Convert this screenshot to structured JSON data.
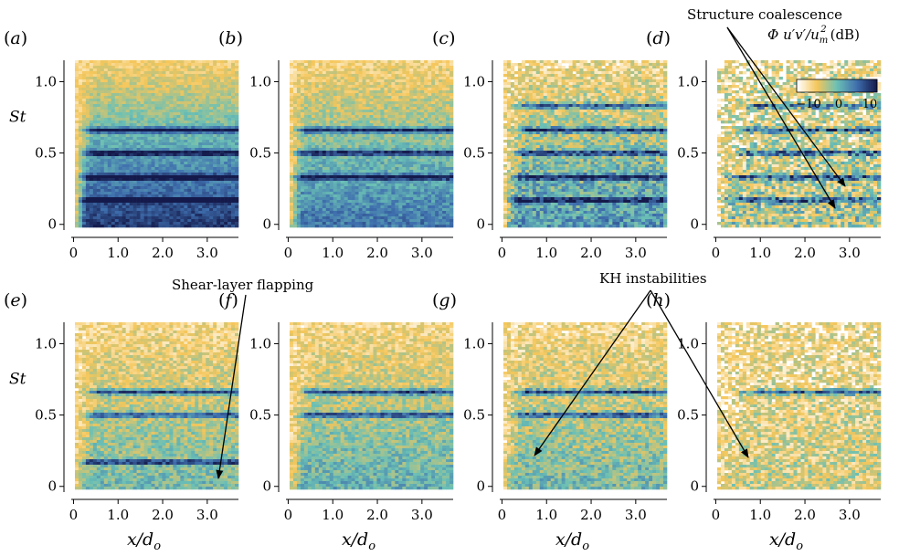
{
  "annotations": {
    "structure_coalescence": "Structure coalescence",
    "shear_layer_flapping": "Shear-layer flapping",
    "kh_instabilities": "KH instabilities"
  },
  "colorbar": {
    "label_main": "Φ u′v′/u",
    "label_sub": "m",
    "label_sup": "2",
    "label_unit": "(dB)",
    "ticks": [
      "−10",
      "0",
      "10"
    ],
    "range": [
      -10,
      10
    ],
    "colors": [
      "#ffffff",
      "#f5c65a",
      "#6bc0b5",
      "#3f6fae",
      "#141a4b"
    ]
  },
  "chart_data": {
    "type": "heatmap",
    "panel_labels": [
      "a",
      "b",
      "c",
      "d",
      "e",
      "f",
      "g",
      "h"
    ],
    "xlabel": "x/d",
    "xlabel_sub": "o",
    "ylabel": "St",
    "x_ticks": [
      "0",
      "1.0",
      "2.0",
      "3.0"
    ],
    "x_tick_values": [
      0,
      1,
      2,
      3
    ],
    "y_ticks": [
      "0",
      "0.5",
      "1.0"
    ],
    "y_tick_values": [
      0,
      0.5,
      1.0
    ],
    "xlim": [
      -0.05,
      3.7
    ],
    "ylim": [
      -0.04,
      1.15
    ],
    "colorbar_range_dB": [
      -10,
      10
    ],
    "panels": [
      {
        "label": "a",
        "tones": [
          0.17,
          0.33,
          0.5,
          0.66
        ],
        "front": 0.15,
        "energy": 0.8,
        "wiggle": 0.4
      },
      {
        "label": "b",
        "tones": [
          0.33,
          0.5,
          0.66
        ],
        "front": 0.1,
        "energy": 0.6,
        "wiggle": 0.5
      },
      {
        "label": "c",
        "tones": [
          0.17,
          0.33,
          0.5,
          0.66,
          0.83
        ],
        "front": 0.25,
        "energy": 0.5,
        "wiggle": 0.8
      },
      {
        "label": "d",
        "tones": [
          0.17,
          0.33,
          0.5,
          0.66,
          0.83
        ],
        "front": 0.5,
        "energy": 0.25,
        "wiggle": 1.2
      },
      {
        "label": "e",
        "tones": [
          0.17,
          0.5,
          0.66
        ],
        "front": 0.25,
        "energy": 0.35,
        "wiggle": 0.6
      },
      {
        "label": "f",
        "tones": [
          0.5,
          0.66
        ],
        "front": 0.25,
        "energy": 0.4,
        "wiggle": 0.6
      },
      {
        "label": "g",
        "tones": [
          0.5,
          0.66
        ],
        "front": 0.25,
        "energy": 0.35,
        "wiggle": 0.7
      },
      {
        "label": "h",
        "tones": [
          0.66
        ],
        "front": 0.6,
        "energy": 0.15,
        "wiggle": 0.9
      }
    ]
  }
}
